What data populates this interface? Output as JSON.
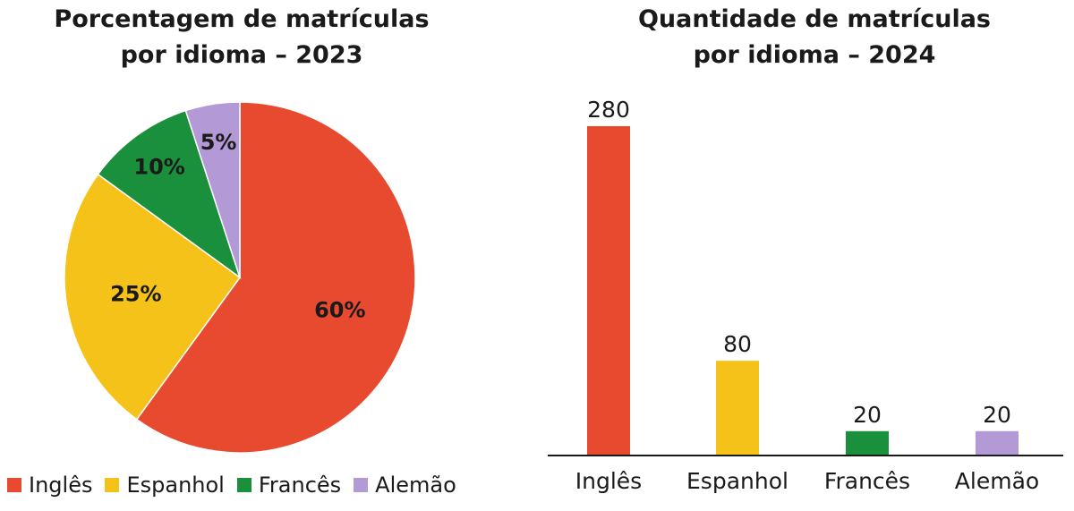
{
  "chart_data": [
    {
      "type": "pie",
      "title_lines": [
        "Porcentagem de matrículas",
        "por idioma – 2023"
      ],
      "slices": [
        {
          "name": "Inglês",
          "value": 60,
          "label": "60%"
        },
        {
          "name": "Espanhol",
          "value": 25,
          "label": "25%"
        },
        {
          "name": "Francês",
          "value": 10,
          "label": "10%"
        },
        {
          "name": "Alemão",
          "value": 5,
          "label": "5%"
        }
      ],
      "colors": [
        "#e84a2f",
        "#f5c21a",
        "#1a8f3c",
        "#b39ad6"
      ],
      "legend_position": "bottom"
    },
    {
      "type": "bar",
      "title_lines": [
        "Quantidade de matrículas",
        "por idioma – 2024"
      ],
      "categories": [
        "Inglês",
        "Espanhol",
        "Francês",
        "Alemão"
      ],
      "values": [
        280,
        80,
        20,
        20
      ],
      "value_labels": [
        "280",
        "80",
        "20",
        "20"
      ],
      "colors": [
        "#e84a2f",
        "#f5c21a",
        "#1a8f3c",
        "#b39ad6"
      ],
      "ylim": [
        0,
        280
      ],
      "grid": false
    }
  ]
}
